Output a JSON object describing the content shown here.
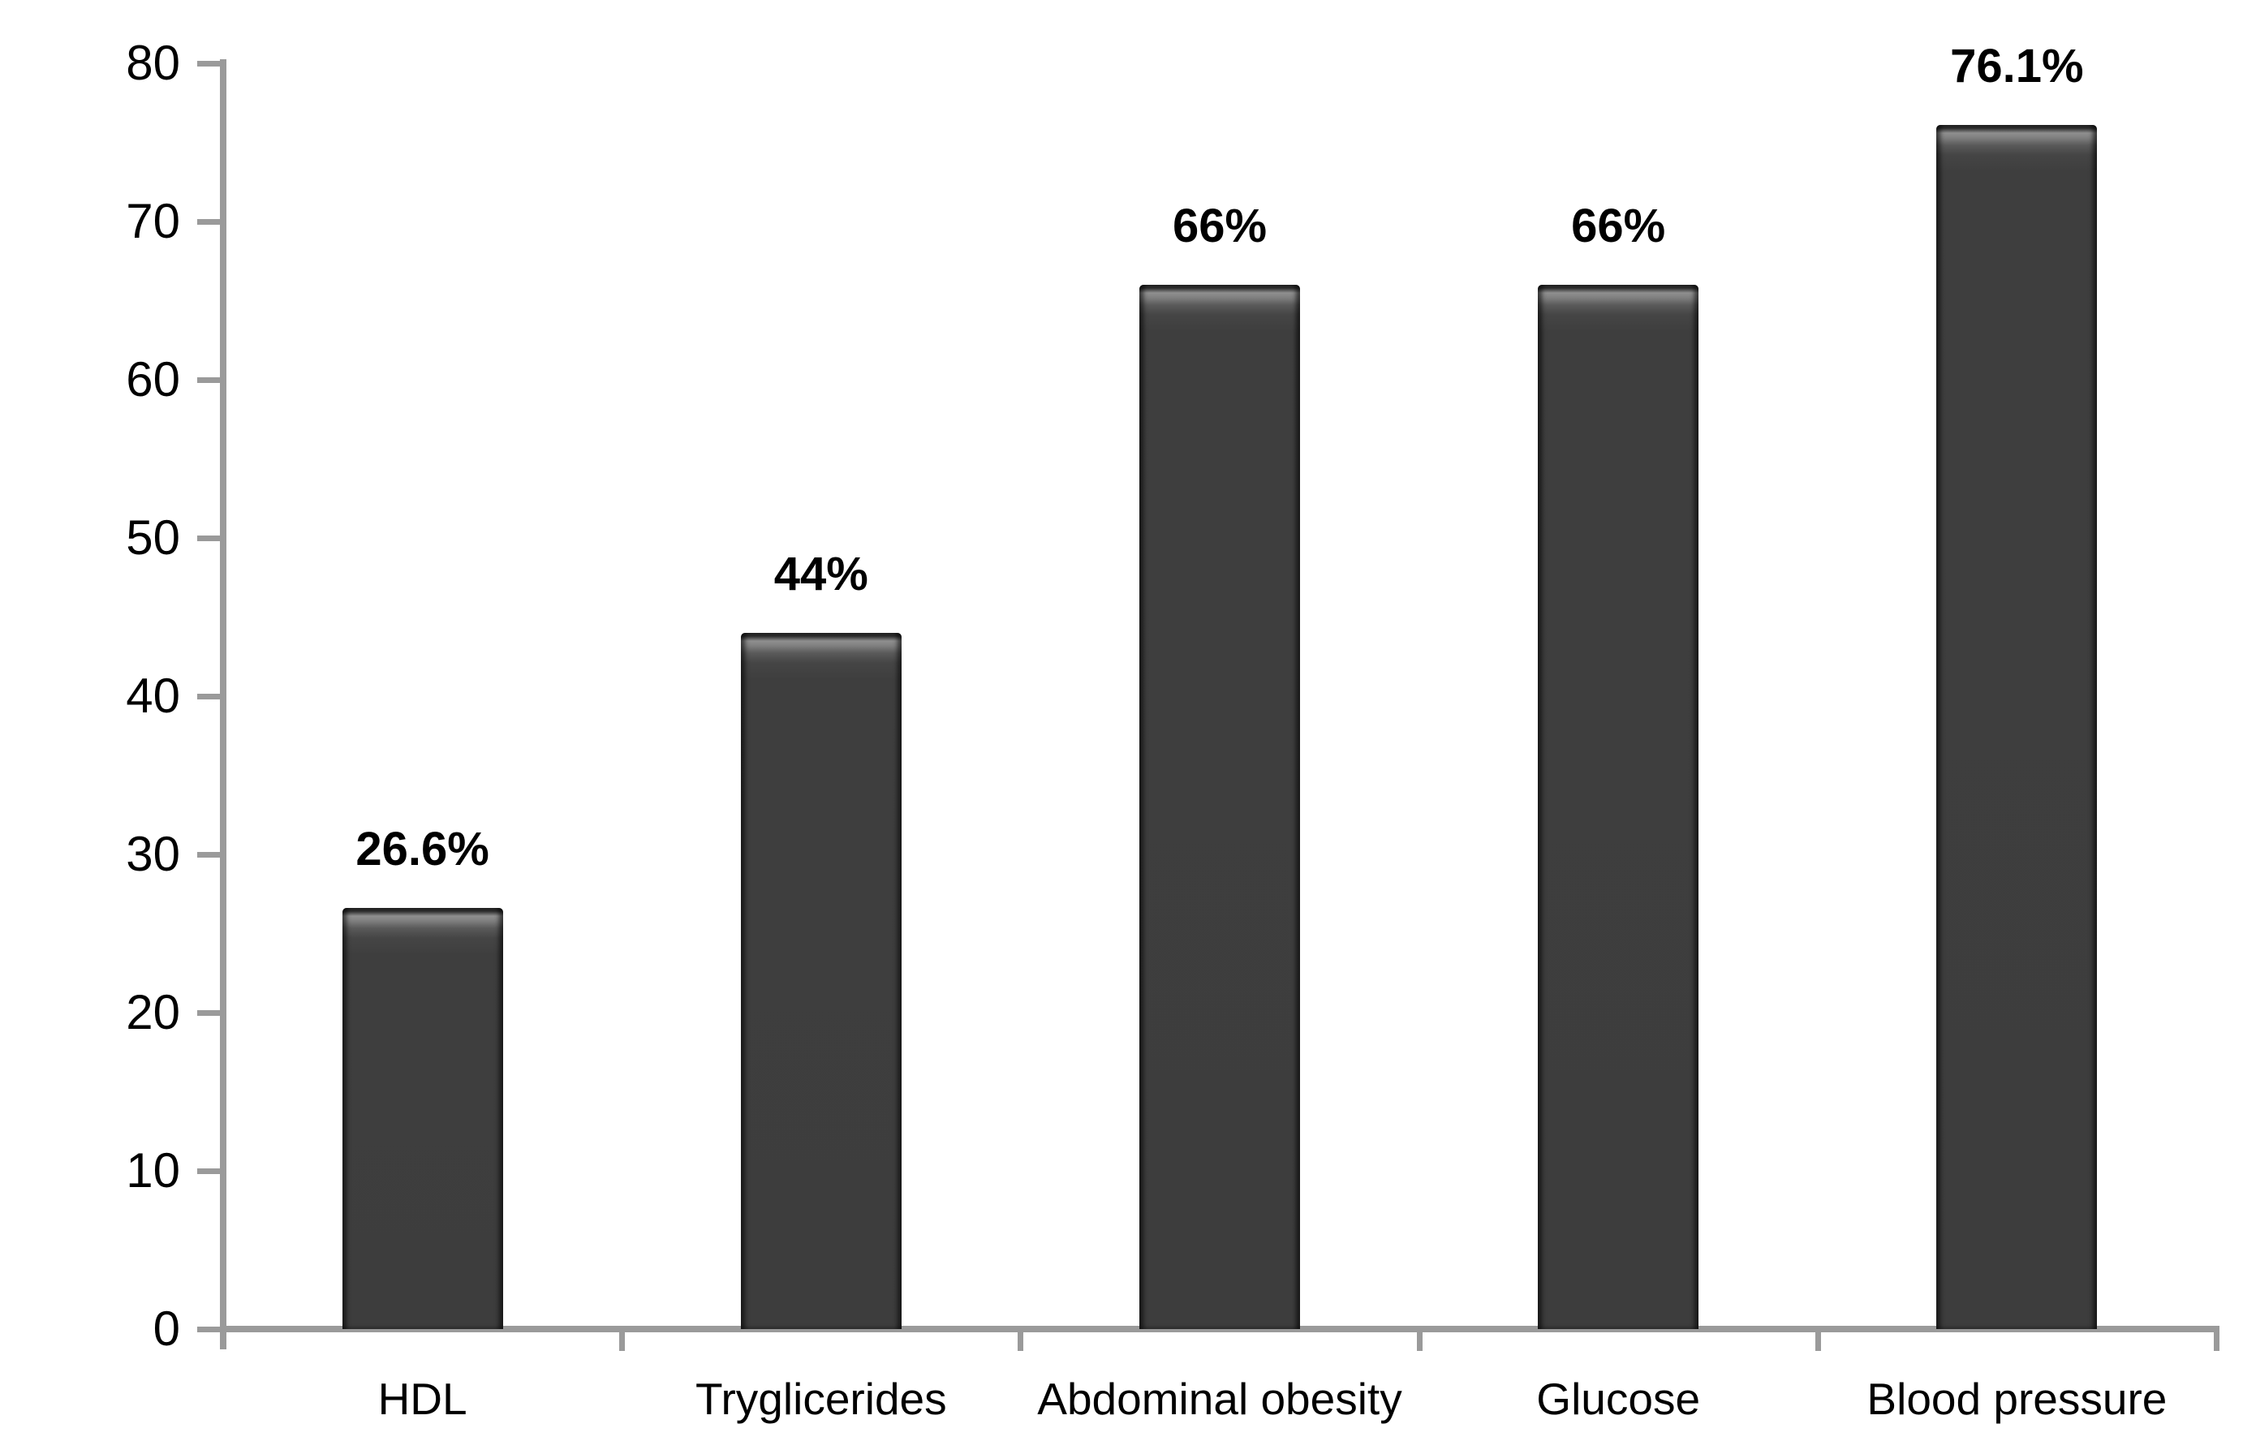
{
  "chart_data": {
    "type": "bar",
    "title": "",
    "xlabel": "",
    "ylabel": "",
    "categories": [
      "HDL",
      "Tryglicerides",
      "Abdominal obesity",
      "Glucose",
      "Blood pressure"
    ],
    "values": [
      26.6,
      44,
      66,
      66,
      76.1
    ],
    "value_labels": [
      "26.6%",
      "44%",
      "66%",
      "66%",
      "76.1%"
    ],
    "yticks": [
      "0",
      "10",
      "20",
      "30",
      "40",
      "50",
      "60",
      "70",
      "80"
    ],
    "ylim": [
      0,
      80
    ],
    "ytick_step": 10,
    "grid": false,
    "legend_position": "none",
    "colors": {
      "bar_fill": "#3d3d3d",
      "bar_highlight": "#8f8f8f",
      "bar_edge": "#242424",
      "axis": "#9a9a9a",
      "text": "#000000",
      "background": "#ffffff"
    }
  }
}
